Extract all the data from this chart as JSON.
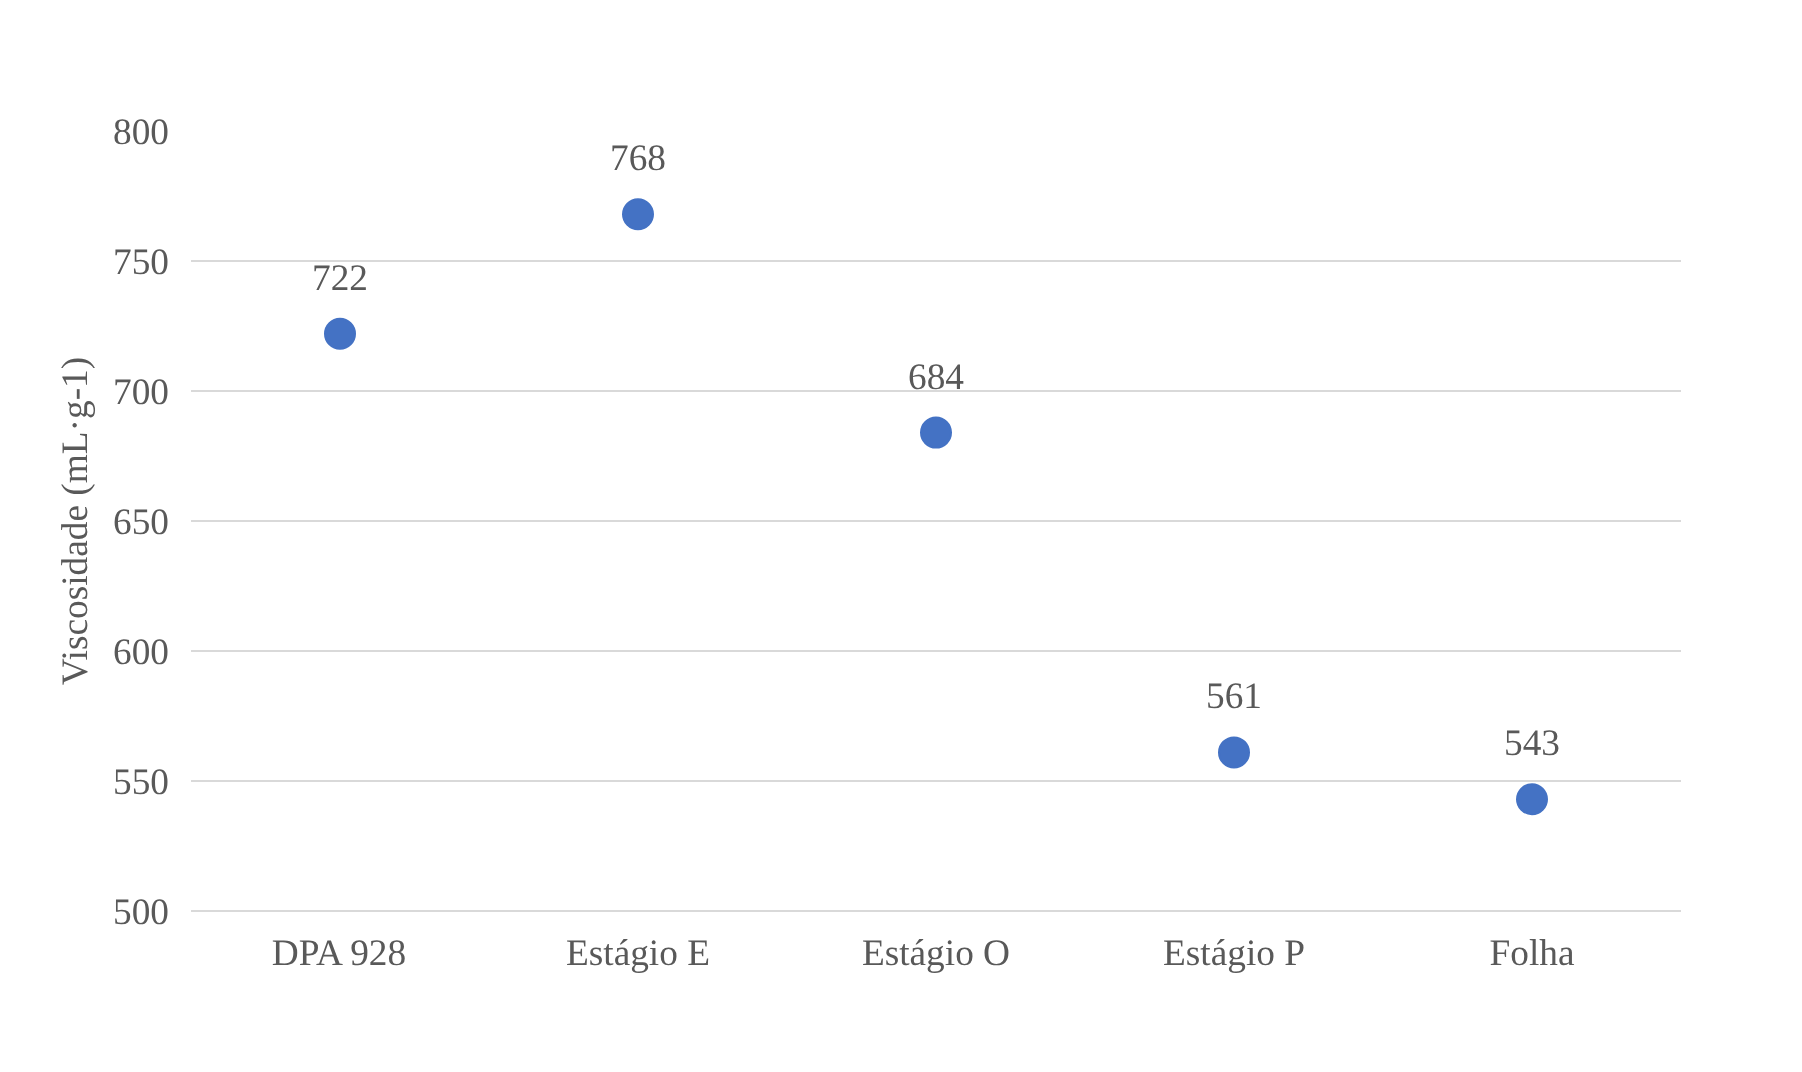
{
  "chart_data": {
    "type": "scatter",
    "ylabel": "Viscosidade (mL·g-1)",
    "categories": [
      "DPA 928",
      "Estágio E",
      "Estágio O",
      "Estágio P",
      "Folha"
    ],
    "values": [
      722,
      768,
      684,
      561,
      543
    ],
    "color": "#4472c4",
    "ylim": [
      500,
      800
    ],
    "yticks": [
      500,
      550,
      600,
      650,
      700,
      750,
      800
    ],
    "grid": "y",
    "marker": "circle",
    "data_labels": true
  }
}
